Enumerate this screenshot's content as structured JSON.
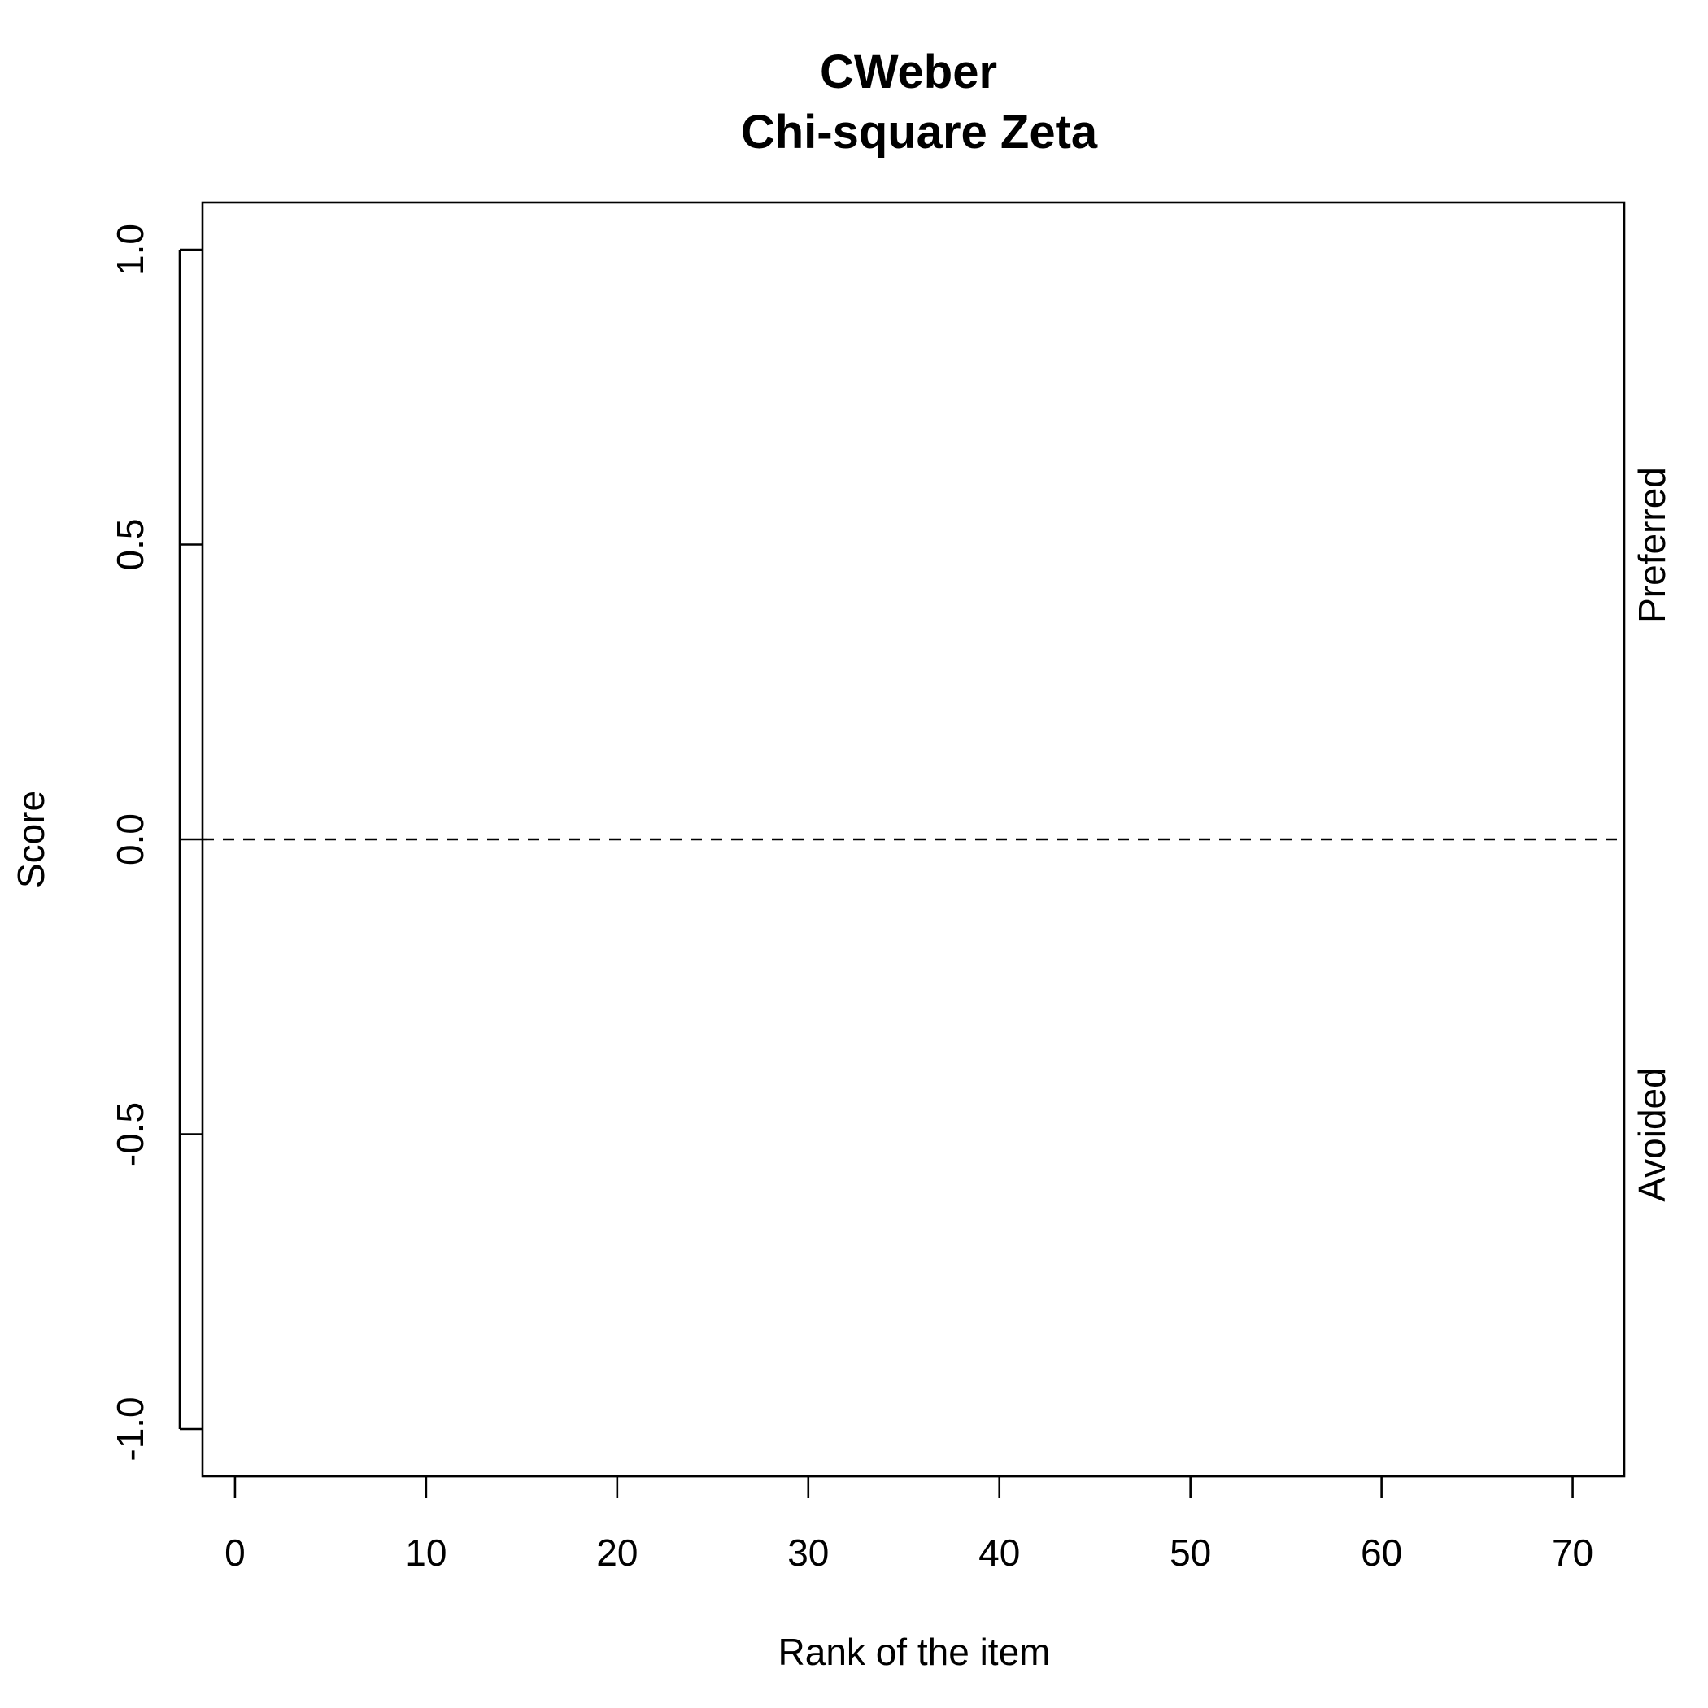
{
  "chart_data": {
    "type": "scatter",
    "title": "CWeber",
    "subtitle": "Chi-square Zeta",
    "xlabel": "Rank of the item",
    "ylabel": "Score",
    "xlim": [
      -1.7,
      72.7
    ],
    "ylim": [
      -1.08,
      1.08
    ],
    "x_ticks": [
      0,
      10,
      20,
      30,
      40,
      50,
      60,
      70
    ],
    "x_tick_labels": [
      "0",
      "10",
      "20",
      "30",
      "40",
      "50",
      "60",
      "70"
    ],
    "y_ticks": [
      -1.0,
      -0.5,
      0.0,
      0.5,
      1.0
    ],
    "y_tick_labels": [
      "-1.0",
      "-0.5",
      "0.0",
      "0.5",
      "1.0"
    ],
    "reference_line": {
      "y": 0.0,
      "style": "dashed"
    },
    "right_labels": {
      "upper": "Preferred",
      "lower": "Avoided"
    },
    "series": [],
    "grid": false,
    "legend": "none"
  }
}
